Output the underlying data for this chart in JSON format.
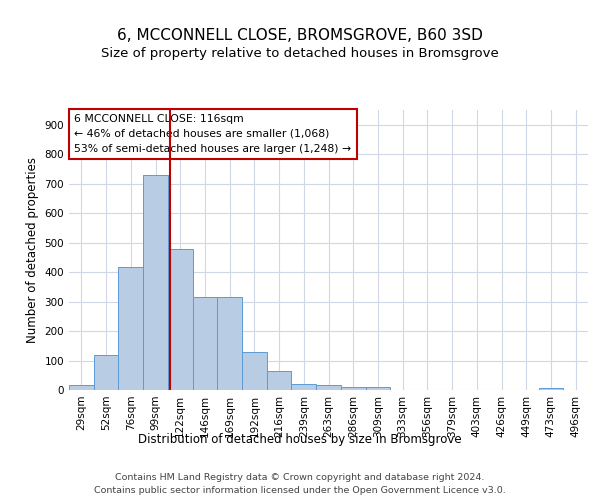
{
  "title1": "6, MCCONNELL CLOSE, BROMSGROVE, B60 3SD",
  "title2": "Size of property relative to detached houses in Bromsgrove",
  "xlabel": "Distribution of detached houses by size in Bromsgrove",
  "ylabel": "Number of detached properties",
  "categories": [
    "29sqm",
    "52sqm",
    "76sqm",
    "99sqm",
    "122sqm",
    "146sqm",
    "169sqm",
    "192sqm",
    "216sqm",
    "239sqm",
    "263sqm",
    "286sqm",
    "309sqm",
    "333sqm",
    "356sqm",
    "379sqm",
    "403sqm",
    "426sqm",
    "449sqm",
    "473sqm",
    "496sqm"
  ],
  "values": [
    18,
    120,
    418,
    730,
    478,
    315,
    315,
    130,
    65,
    22,
    18,
    10,
    10,
    0,
    0,
    0,
    0,
    0,
    0,
    8,
    0
  ],
  "bar_color": "#b8cce4",
  "bar_edge_color": "#5b9bd5",
  "vline_color": "#c00000",
  "annotation_text": "6 MCCONNELL CLOSE: 116sqm\n← 46% of detached houses are smaller (1,068)\n53% of semi-detached houses are larger (1,248) →",
  "annotation_box_color": "#ffffff",
  "annotation_box_edge": "#c00000",
  "footer1": "Contains HM Land Registry data © Crown copyright and database right 2024.",
  "footer2": "Contains public sector information licensed under the Open Government Licence v3.0.",
  "ylim": [
    0,
    950
  ],
  "yticks": [
    0,
    100,
    200,
    300,
    400,
    500,
    600,
    700,
    800,
    900
  ],
  "background_color": "#ffffff",
  "grid_color": "#d0d8e8",
  "title1_fontsize": 11,
  "title2_fontsize": 9.5,
  "axis_label_fontsize": 8.5,
  "tick_fontsize": 7.5,
  "footer_fontsize": 6.8,
  "annotation_fontsize": 7.8
}
